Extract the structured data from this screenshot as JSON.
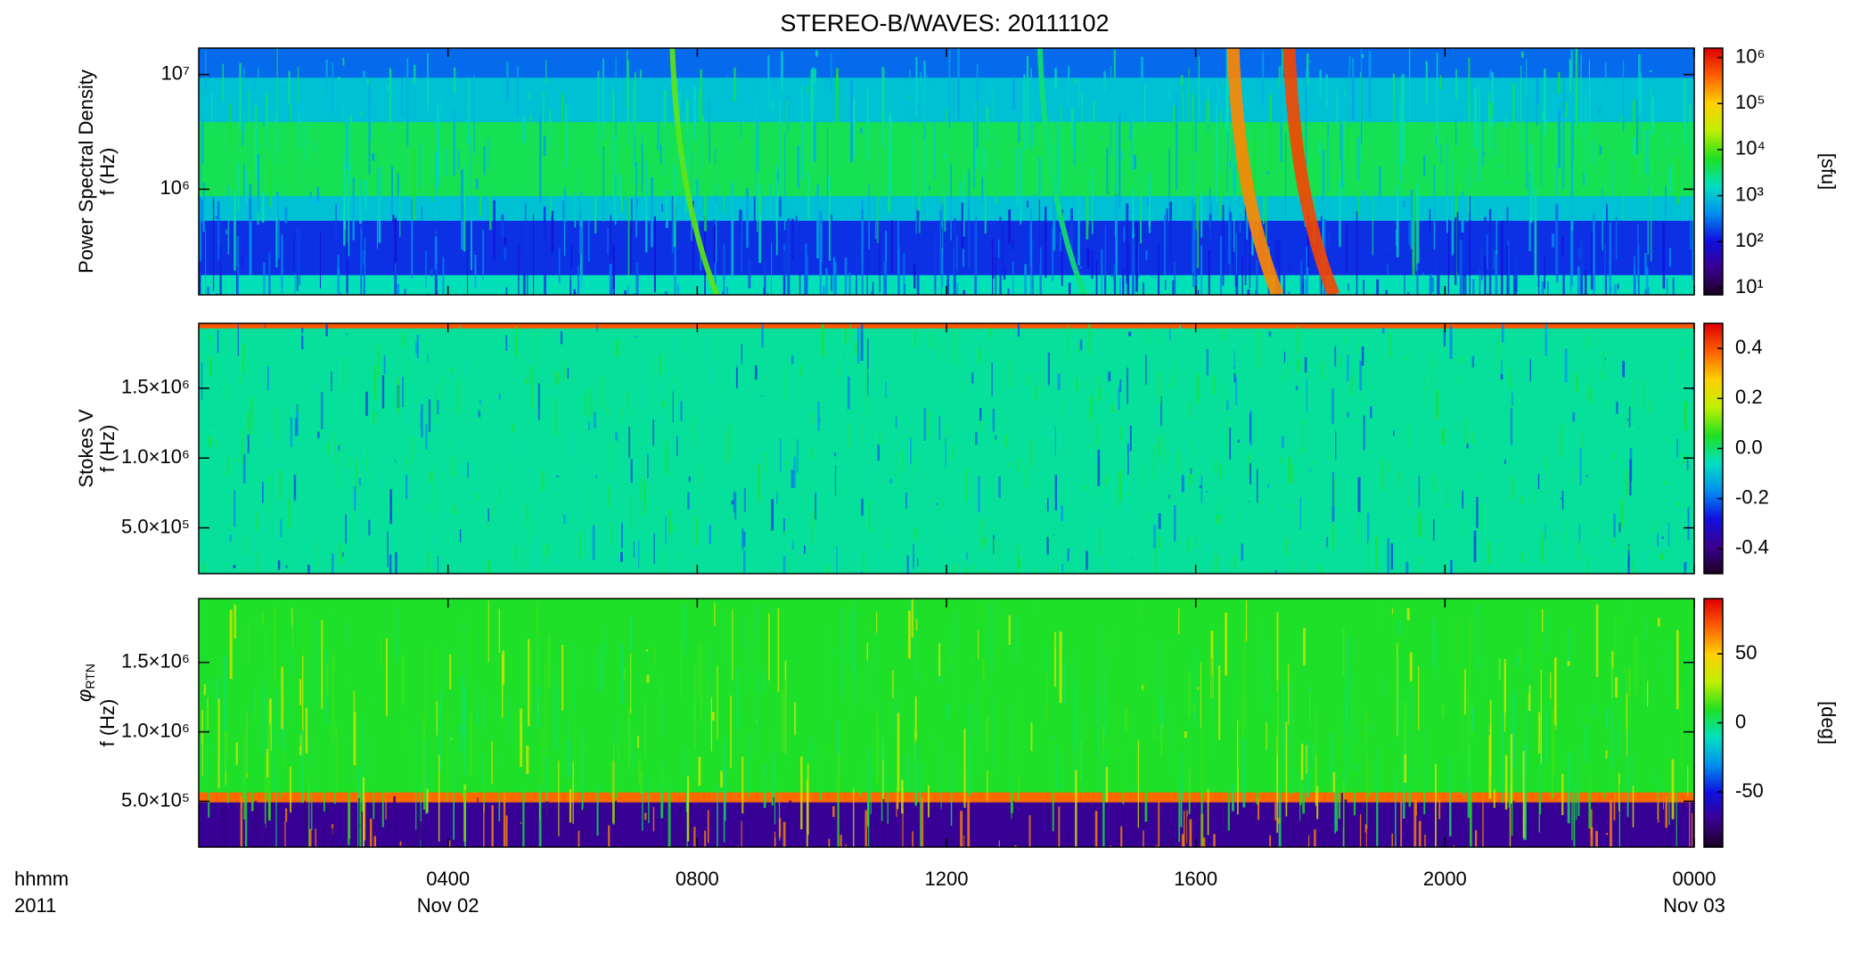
{
  "chart_data": [
    {
      "type": "heatmap",
      "title": "STEREO-B/WAVES: 20111102",
      "ylabel": [
        "Power Spectral Density",
        "f (Hz)"
      ],
      "ylog": true,
      "ylim": [
        120000,
        17000000
      ],
      "yticks": [
        {
          "value": 1000000,
          "label": "10⁶"
        },
        {
          "value": 10000000,
          "label": "10⁷"
        }
      ],
      "colorbar": {
        "log": true,
        "lim": [
          7,
          1600000
        ],
        "label": "[sfu]",
        "ticks": [
          {
            "value": 10,
            "label": "10¹"
          },
          {
            "value": 100,
            "label": "10²"
          },
          {
            "value": 1000,
            "label": "10³"
          },
          {
            "value": 10000,
            "label": "10⁴"
          },
          {
            "value": 100000,
            "label": "10⁵"
          },
          {
            "value": 1000000,
            "label": "10⁶"
          }
        ]
      },
      "colormap": [
        "#1a0020",
        "#3a0090",
        "#1010e0",
        "#0090f0",
        "#00e0c0",
        "#20e020",
        "#c0f000",
        "#ffd000",
        "#ff6000",
        "#e00000"
      ]
    },
    {
      "type": "heatmap",
      "ylabel": [
        "Stokes V",
        "f (Hz)"
      ],
      "ylog": false,
      "ylim": [
        172000,
        1965000
      ],
      "yticks": [
        {
          "value": 500000,
          "label": "5.0×10⁵"
        },
        {
          "value": 1000000,
          "label": "1.0×10⁶"
        },
        {
          "value": 1500000,
          "label": "1.5×10⁶"
        }
      ],
      "colorbar": {
        "log": false,
        "lim": [
          -0.5,
          0.5
        ],
        "ticks": [
          -0.4,
          -0.2,
          {
            "value": 0,
            "label": "0.0"
          },
          0.2,
          0.4
        ]
      },
      "colormap": [
        "#1a0020",
        "#3a0090",
        "#1010e0",
        "#0090f0",
        "#00e0c0",
        "#20e020",
        "#c0f000",
        "#ffd000",
        "#ff6000",
        "#e00000"
      ]
    },
    {
      "type": "heatmap",
      "ylabel_symbol": "φ",
      "ylabel_subscript": "RTN",
      "ylabel": [
        "f (Hz)"
      ],
      "ylog": false,
      "ylim": [
        170000,
        1960000
      ],
      "yticks": [
        {
          "value": 500000,
          "label": "5.0×10⁵"
        },
        {
          "value": 1000000,
          "label": "1.0×10⁶"
        },
        {
          "value": 1500000,
          "label": "1.5×10⁶"
        }
      ],
      "colorbar": {
        "log": false,
        "lim": [
          -90,
          90
        ],
        "label": "[deg]",
        "ticks": [
          -50,
          0,
          50
        ]
      },
      "colormap": [
        "#1a0020",
        "#3a0090",
        "#1010e0",
        "#0090f0",
        "#00e0c0",
        "#20e020",
        "#c0f000",
        "#ffd000",
        "#ff6000",
        "#e00000"
      ],
      "xlim": [
        0,
        24
      ],
      "xticks": [
        {
          "value": 4,
          "label": "0400"
        },
        {
          "value": 8,
          "label": "0800"
        },
        {
          "value": 12,
          "label": "1200"
        },
        {
          "value": 16,
          "label": "1600"
        },
        {
          "value": 20,
          "label": "2000"
        },
        {
          "value": 24,
          "label": "0000"
        }
      ],
      "x_date_labels": [
        {
          "value": 4,
          "label": "Nov 02"
        },
        {
          "value": 24,
          "label": "Nov 03"
        }
      ],
      "xaxis_unit_label": "hhmm",
      "xaxis_year_label": "2011"
    }
  ]
}
